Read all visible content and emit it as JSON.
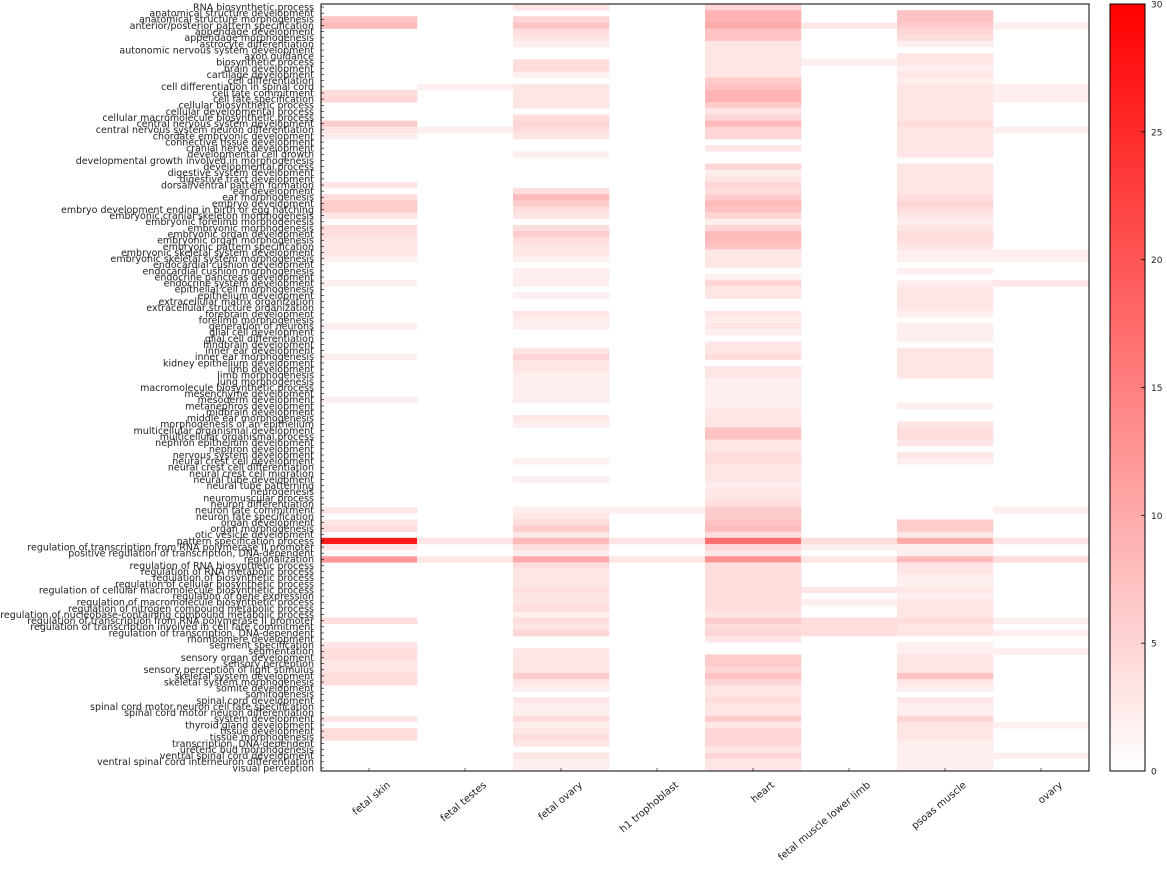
{
  "chart_data": {
    "type": "heatmap",
    "title": "",
    "xlabel": "",
    "ylabel": "",
    "columns": [
      "fetal skin",
      "fetal testes",
      "fetal ovary",
      "h1 trophoblast",
      "heart",
      "fetal muscle lower limb",
      "psoas muscle",
      "ovary"
    ],
    "rows": [
      "RNA biosynthetic process",
      "anatomical structure development",
      "anatomical structure morphogenesis",
      "anterior/posterior pattern specification",
      "appendage development",
      "appendage morphogenesis",
      "astrocyte differentiation",
      "autonomic nervous system development",
      "axon guidance",
      "biosynthetic process",
      "brain development",
      "cartilage development",
      "cell differentiation",
      "cell differentiation in spinal cord",
      "cell fate commitment",
      "cell fate specification",
      "cellular biosynthetic process",
      "cellular developmental process",
      "cellular macromolecule biosynthetic process",
      "central nervous system development",
      "central nervous system neuron differentiation",
      "chordate embryonic development",
      "connective tissue development",
      "cranial nerve development",
      "developmental cell growth",
      "developmental growth involved in morphogenesis",
      "developmental process",
      "digestive system development",
      "digestive tract development",
      "dorsal/ventral pattern formation",
      "ear development",
      "ear morphogenesis",
      "embryo development",
      "embryo development ending in birth or egg hatching",
      "embryonic cranial skeleton morphogenesis",
      "embryonic forelimb morphogenesis",
      "embryonic morphogenesis",
      "embryonic organ development",
      "embryonic organ morphogenesis",
      "embryonic pattern specification",
      "embryonic skeletal system development",
      "embryonic skeletal system morphogenesis",
      "endocardial cushion development",
      "endocardial cushion morphogenesis",
      "endocrine pancreas development",
      "endocrine system development",
      "epithelial cell morphogenesis",
      "epithelium development",
      "extracellular matrix organization",
      "extracellular structure organization",
      "forebrain development",
      "forelimb morphogenesis",
      "generation of neurons",
      "glial cell development",
      "glial cell differentiation",
      "hindbrain development",
      "inner ear development",
      "inner ear morphogenesis",
      "kidney epithelium development",
      "limb development",
      "limb morphogenesis",
      "lung morphogenesis",
      "macromolecule biosynthetic process",
      "mesenchyme development",
      "mesoderm development",
      "metanephros development",
      "midbrain development",
      "middle ear morphogenesis",
      "morphogenesis of an epithelium",
      "multicellular organismal development",
      "multicellular organismal process",
      "nephron epithelium development",
      "nephron development",
      "nervous system development",
      "neural crest cell development",
      "neural crest cell differentiation",
      "neural crest cell migration",
      "neural tube development",
      "neural tube patterning",
      "neurogenesis",
      "neuromuscular process",
      "neuron differentiation",
      "neuron fate commitment",
      "neuron fate specification",
      "organ development",
      "organ morphogenesis",
      "otic vesicle development",
      "pattern specification process",
      "regulation of transcription from RNA polymerase II promoter",
      "positive regulation of transcription, DNA-dependent",
      "regionalization",
      "regulation of RNA biosynthetic process",
      "regulation of RNA metabolic process",
      "regulation of biosynthetic process",
      "regulation of cellular biosynthetic process",
      "regulation of cellular macromolecule biosynthetic process",
      "regulation of gene expression",
      "regulation of macromolecule biosynthetic process",
      "regulation of nitrogen compound metabolic process",
      "regulation of nucleobase-containing compound metabolic process",
      "regulation of transcription from RNA polymerase II promoter",
      "regulation of transcription involved in cell fate commitment",
      "regulation of transcription, DNA-dependent",
      "rhombomere development",
      "segment specification",
      "segmentation",
      "sensory organ development",
      "sensory perception",
      "sensory perception of light stimulus",
      "skeletal system development",
      "skeletal system morphogenesis",
      "somite development",
      "somitogenesis",
      "spinal cord development",
      "spinal cord motor neuron cell fate specification",
      "spinal cord motor neuron differentiation",
      "system development",
      "thyroid gland development",
      "tissue development",
      "tissue morphogenesis",
      "transcription, DNA-dependent",
      "ureteric bud morphogenesis",
      "ventral spinal cord development",
      "ventral spinal cord interneuron differentiation",
      "visual perception"
    ],
    "values": [
      [
        0,
        0,
        3,
        0,
        5,
        0,
        0,
        0
      ],
      [
        0,
        0,
        0,
        0,
        9,
        0,
        7,
        0
      ],
      [
        7,
        0,
        5,
        0,
        9,
        0,
        7,
        0
      ],
      [
        8,
        0,
        7,
        0,
        10,
        3,
        6,
        2
      ],
      [
        0,
        0,
        4,
        0,
        7,
        0,
        5,
        0
      ],
      [
        0,
        0,
        3,
        0,
        7,
        0,
        4,
        0
      ],
      [
        0,
        0,
        2,
        0,
        3,
        0,
        2,
        0
      ],
      [
        0,
        0,
        0,
        0,
        3,
        0,
        0,
        0
      ],
      [
        0,
        0,
        0,
        0,
        3,
        0,
        3,
        0
      ],
      [
        0,
        0,
        4,
        0,
        3,
        2,
        3,
        0
      ],
      [
        0,
        0,
        4,
        0,
        3,
        0,
        2,
        0
      ],
      [
        0,
        0,
        2,
        0,
        3,
        0,
        3,
        0
      ],
      [
        0,
        0,
        0,
        0,
        6,
        0,
        2,
        0
      ],
      [
        0,
        2,
        3,
        0,
        7,
        0,
        3,
        2
      ],
      [
        4,
        0,
        3,
        0,
        9,
        0,
        3,
        2
      ],
      [
        5,
        0,
        3,
        0,
        9,
        0,
        3,
        2
      ],
      [
        0,
        0,
        3,
        0,
        6,
        0,
        3,
        0
      ],
      [
        0,
        0,
        0,
        0,
        3,
        0,
        3,
        0
      ],
      [
        0,
        0,
        4,
        0,
        5,
        0,
        3,
        0
      ],
      [
        6,
        0,
        5,
        0,
        8,
        0,
        4,
        0
      ],
      [
        3,
        2,
        4,
        0,
        5,
        0,
        3,
        2
      ],
      [
        2,
        0,
        3,
        0,
        5,
        0,
        3,
        0
      ],
      [
        0,
        0,
        0,
        0,
        0,
        0,
        3,
        0
      ],
      [
        0,
        0,
        0,
        0,
        3,
        0,
        3,
        0
      ],
      [
        0,
        0,
        2,
        0,
        0,
        0,
        3,
        0
      ],
      [
        0,
        0,
        0,
        0,
        0,
        0,
        0,
        0
      ],
      [
        0,
        0,
        0,
        0,
        5,
        0,
        3,
        0
      ],
      [
        0,
        0,
        0,
        0,
        2,
        0,
        3,
        0
      ],
      [
        0,
        0,
        0,
        0,
        3,
        0,
        3,
        0
      ],
      [
        3,
        0,
        0,
        0,
        5,
        0,
        3,
        0
      ],
      [
        0,
        0,
        4,
        0,
        4,
        0,
        3,
        0
      ],
      [
        4,
        0,
        8,
        0,
        6,
        0,
        4,
        0
      ],
      [
        6,
        0,
        6,
        0,
        8,
        0,
        5,
        0
      ],
      [
        6,
        0,
        4,
        0,
        7,
        0,
        4,
        0
      ],
      [
        3,
        0,
        3,
        0,
        5,
        0,
        3,
        0
      ],
      [
        0,
        0,
        0,
        0,
        2,
        0,
        2,
        0
      ],
      [
        4,
        0,
        4,
        0,
        5,
        0,
        3,
        0
      ],
      [
        4,
        0,
        6,
        0,
        8,
        0,
        4,
        0
      ],
      [
        3,
        0,
        4,
        0,
        8,
        0,
        4,
        0
      ],
      [
        3,
        0,
        3,
        0,
        7,
        0,
        3,
        0
      ],
      [
        3,
        0,
        3,
        0,
        3,
        0,
        2,
        2
      ],
      [
        2,
        0,
        2,
        0,
        3,
        0,
        2,
        2
      ],
      [
        0,
        0,
        0,
        0,
        3,
        0,
        0,
        0
      ],
      [
        0,
        0,
        2,
        0,
        0,
        0,
        2,
        0
      ],
      [
        0,
        0,
        2,
        0,
        2,
        0,
        0,
        0
      ],
      [
        2,
        0,
        2,
        0,
        5,
        0,
        2,
        3
      ],
      [
        0,
        0,
        0,
        0,
        3,
        0,
        3,
        0
      ],
      [
        0,
        0,
        2,
        0,
        3,
        0,
        3,
        0
      ],
      [
        0,
        0,
        0,
        0,
        0,
        0,
        3,
        0
      ],
      [
        0,
        0,
        0,
        0,
        0,
        0,
        3,
        0
      ],
      [
        0,
        0,
        3,
        0,
        3,
        0,
        2,
        0
      ],
      [
        0,
        0,
        2,
        0,
        2,
        0,
        0,
        0
      ],
      [
        2,
        0,
        2,
        0,
        3,
        0,
        2,
        0
      ],
      [
        0,
        0,
        0,
        0,
        2,
        0,
        2,
        0
      ],
      [
        0,
        0,
        0,
        0,
        0,
        0,
        2,
        0
      ],
      [
        0,
        0,
        0,
        0,
        3,
        0,
        0,
        0
      ],
      [
        0,
        0,
        3,
        0,
        3,
        0,
        3,
        0
      ],
      [
        2,
        0,
        5,
        0,
        4,
        0,
        3,
        0
      ],
      [
        0,
        0,
        3,
        0,
        0,
        0,
        3,
        0
      ],
      [
        0,
        0,
        3,
        0,
        3,
        0,
        3,
        0
      ],
      [
        0,
        0,
        2,
        0,
        3,
        0,
        3,
        0
      ],
      [
        0,
        0,
        2,
        0,
        2,
        0,
        0,
        0
      ],
      [
        0,
        0,
        2,
        0,
        2,
        0,
        0,
        0
      ],
      [
        0,
        0,
        2,
        0,
        2,
        0,
        0,
        0
      ],
      [
        2,
        0,
        2,
        0,
        2,
        0,
        0,
        0
      ],
      [
        0,
        0,
        0,
        0,
        2,
        0,
        2,
        0
      ],
      [
        0,
        0,
        0,
        0,
        3,
        0,
        0,
        0
      ],
      [
        0,
        0,
        3,
        0,
        3,
        0,
        0,
        0
      ],
      [
        0,
        0,
        2,
        0,
        3,
        0,
        3,
        0
      ],
      [
        0,
        0,
        0,
        0,
        7,
        0,
        4,
        0
      ],
      [
        0,
        0,
        0,
        0,
        7,
        0,
        4,
        0
      ],
      [
        0,
        0,
        0,
        0,
        3,
        0,
        3,
        0
      ],
      [
        0,
        0,
        0,
        0,
        3,
        0,
        0,
        0
      ],
      [
        0,
        0,
        0,
        0,
        4,
        0,
        3,
        0
      ],
      [
        0,
        0,
        2,
        0,
        4,
        0,
        2,
        0
      ],
      [
        0,
        0,
        0,
        0,
        3,
        0,
        0,
        0
      ],
      [
        0,
        0,
        0,
        0,
        3,
        0,
        0,
        0
      ],
      [
        0,
        0,
        2,
        0,
        3,
        0,
        0,
        0
      ],
      [
        0,
        0,
        0,
        0,
        2,
        0,
        0,
        0
      ],
      [
        0,
        0,
        0,
        0,
        3,
        0,
        0,
        0
      ],
      [
        0,
        0,
        0,
        0,
        3,
        0,
        0,
        0
      ],
      [
        0,
        0,
        0,
        0,
        4,
        0,
        0,
        0
      ],
      [
        3,
        0,
        2,
        2,
        6,
        0,
        0,
        2
      ],
      [
        0,
        0,
        3,
        0,
        6,
        0,
        0,
        0
      ],
      [
        3,
        0,
        4,
        0,
        7,
        0,
        6,
        0
      ],
      [
        4,
        0,
        6,
        0,
        8,
        0,
        6,
        0
      ],
      [
        0,
        0,
        3,
        0,
        4,
        0,
        3,
        0
      ],
      [
        27,
        3,
        8,
        3,
        17,
        4,
        10,
        3
      ],
      [
        3,
        0,
        4,
        0,
        5,
        2,
        2,
        0
      ],
      [
        0,
        0,
        2,
        0,
        3,
        0,
        2,
        0
      ],
      [
        12,
        3,
        10,
        3,
        13,
        3,
        8,
        4
      ],
      [
        0,
        0,
        4,
        0,
        4,
        0,
        3,
        0
      ],
      [
        0,
        0,
        3,
        0,
        4,
        0,
        3,
        0
      ],
      [
        0,
        0,
        3,
        0,
        4,
        0,
        2,
        0
      ],
      [
        0,
        0,
        3,
        0,
        4,
        0,
        2,
        0
      ],
      [
        0,
        0,
        4,
        0,
        4,
        3,
        3,
        0
      ],
      [
        0,
        0,
        3,
        0,
        4,
        0,
        2,
        0
      ],
      [
        0,
        0,
        3,
        0,
        4,
        2,
        3,
        0
      ],
      [
        0,
        0,
        4,
        0,
        4,
        0,
        3,
        0
      ],
      [
        0,
        0,
        2,
        0,
        3,
        0,
        3,
        0
      ],
      [
        4,
        0,
        4,
        0,
        6,
        4,
        4,
        2
      ],
      [
        0,
        0,
        3,
        0,
        4,
        4,
        3,
        0
      ],
      [
        0,
        0,
        5,
        0,
        5,
        4,
        3,
        2
      ],
      [
        0,
        0,
        0,
        0,
        3,
        0,
        0,
        0
      ],
      [
        3,
        0,
        0,
        0,
        0,
        0,
        2,
        0
      ],
      [
        4,
        0,
        3,
        0,
        0,
        0,
        2,
        2
      ],
      [
        4,
        0,
        3,
        0,
        6,
        0,
        3,
        0
      ],
      [
        3,
        0,
        3,
        0,
        6,
        0,
        3,
        0
      ],
      [
        3,
        0,
        3,
        0,
        5,
        0,
        3,
        0
      ],
      [
        4,
        0,
        6,
        0,
        7,
        0,
        7,
        0
      ],
      [
        4,
        0,
        3,
        0,
        5,
        0,
        3,
        0
      ],
      [
        0,
        0,
        2,
        0,
        3,
        0,
        2,
        0
      ],
      [
        0,
        0,
        0,
        0,
        3,
        0,
        0,
        0
      ],
      [
        0,
        0,
        3,
        0,
        4,
        0,
        3,
        0
      ],
      [
        0,
        0,
        2,
        0,
        3,
        0,
        2,
        0
      ],
      [
        0,
        0,
        2,
        0,
        3,
        0,
        2,
        0
      ],
      [
        3,
        0,
        4,
        0,
        6,
        0,
        5,
        0
      ],
      [
        0,
        0,
        2,
        0,
        3,
        0,
        3,
        2
      ],
      [
        4,
        0,
        3,
        0,
        5,
        0,
        3,
        0
      ],
      [
        4,
        0,
        4,
        0,
        5,
        0,
        3,
        0
      ],
      [
        0,
        0,
        3,
        0,
        5,
        0,
        2,
        0
      ],
      [
        0,
        0,
        0,
        0,
        3,
        0,
        2,
        0
      ],
      [
        0,
        0,
        3,
        0,
        5,
        0,
        2,
        2
      ],
      [
        0,
        0,
        2,
        0,
        3,
        0,
        2,
        0
      ],
      [
        0,
        0,
        2,
        0,
        3,
        0,
        2,
        0
      ]
    ],
    "colorbar": {
      "min": 0,
      "max": 30,
      "ticks": [
        0,
        5,
        10,
        15,
        20,
        25,
        30
      ],
      "low_color": "#ffffff",
      "high_color": "#ff0000"
    },
    "grid": false,
    "legend": "colorbar-right"
  }
}
